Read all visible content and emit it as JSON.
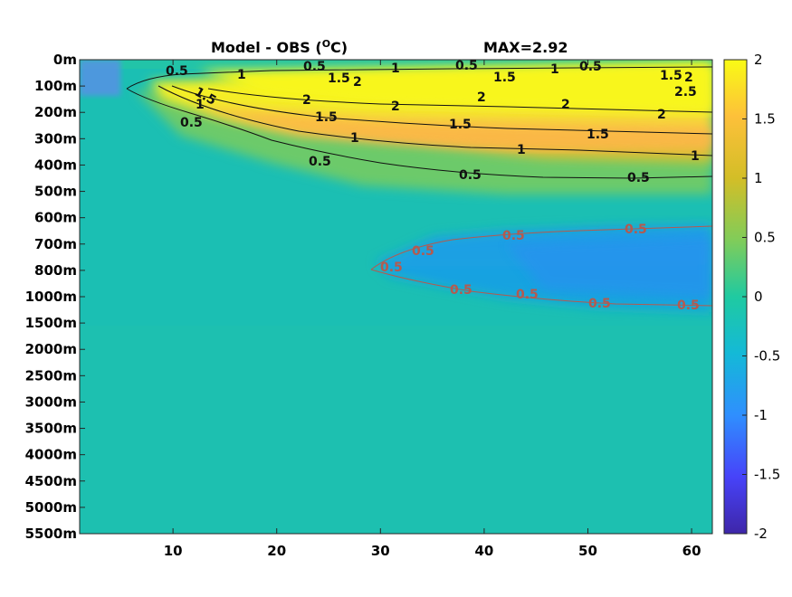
{
  "chart_data": {
    "type": "heatmap",
    "title": "Model - OBS (",
    "title_unit": "O",
    "title_unit_tail": "C)",
    "annotation": "MAX=2.92",
    "x_ticks": [
      10,
      20,
      30,
      40,
      50,
      60
    ],
    "xlim": [
      1,
      62
    ],
    "y_ticks": [
      "0m",
      "100m",
      "200m",
      "300m",
      "400m",
      "500m",
      "600m",
      "700m",
      "800m",
      "1000m",
      "1500m",
      "2000m",
      "2500m",
      "3000m",
      "3500m",
      "4000m",
      "4500m",
      "5000m",
      "5500m"
    ],
    "colorbar": {
      "ticks": [
        "2",
        "1.5",
        "1",
        "0.5",
        "0",
        "-0.5",
        "-1",
        "-1.5",
        "-2"
      ],
      "range": [
        -2,
        2
      ],
      "colormap": [
        "#3e26a8",
        "#4743f9",
        "#2f8ffe",
        "#14b9d7",
        "#1fcaa1",
        "#81cc59",
        "#d3be27",
        "#fdc03a",
        "#f9fb15"
      ]
    },
    "contour_labels": [
      {
        "text": "0.5",
        "series": "positive"
      },
      {
        "text": "1",
        "series": "positive"
      },
      {
        "text": "1.5",
        "series": "positive"
      },
      {
        "text": "2",
        "series": "positive"
      },
      {
        "text": "2.5",
        "series": "positive"
      },
      {
        "text": "0.5",
        "series": "negative"
      }
    ]
  }
}
